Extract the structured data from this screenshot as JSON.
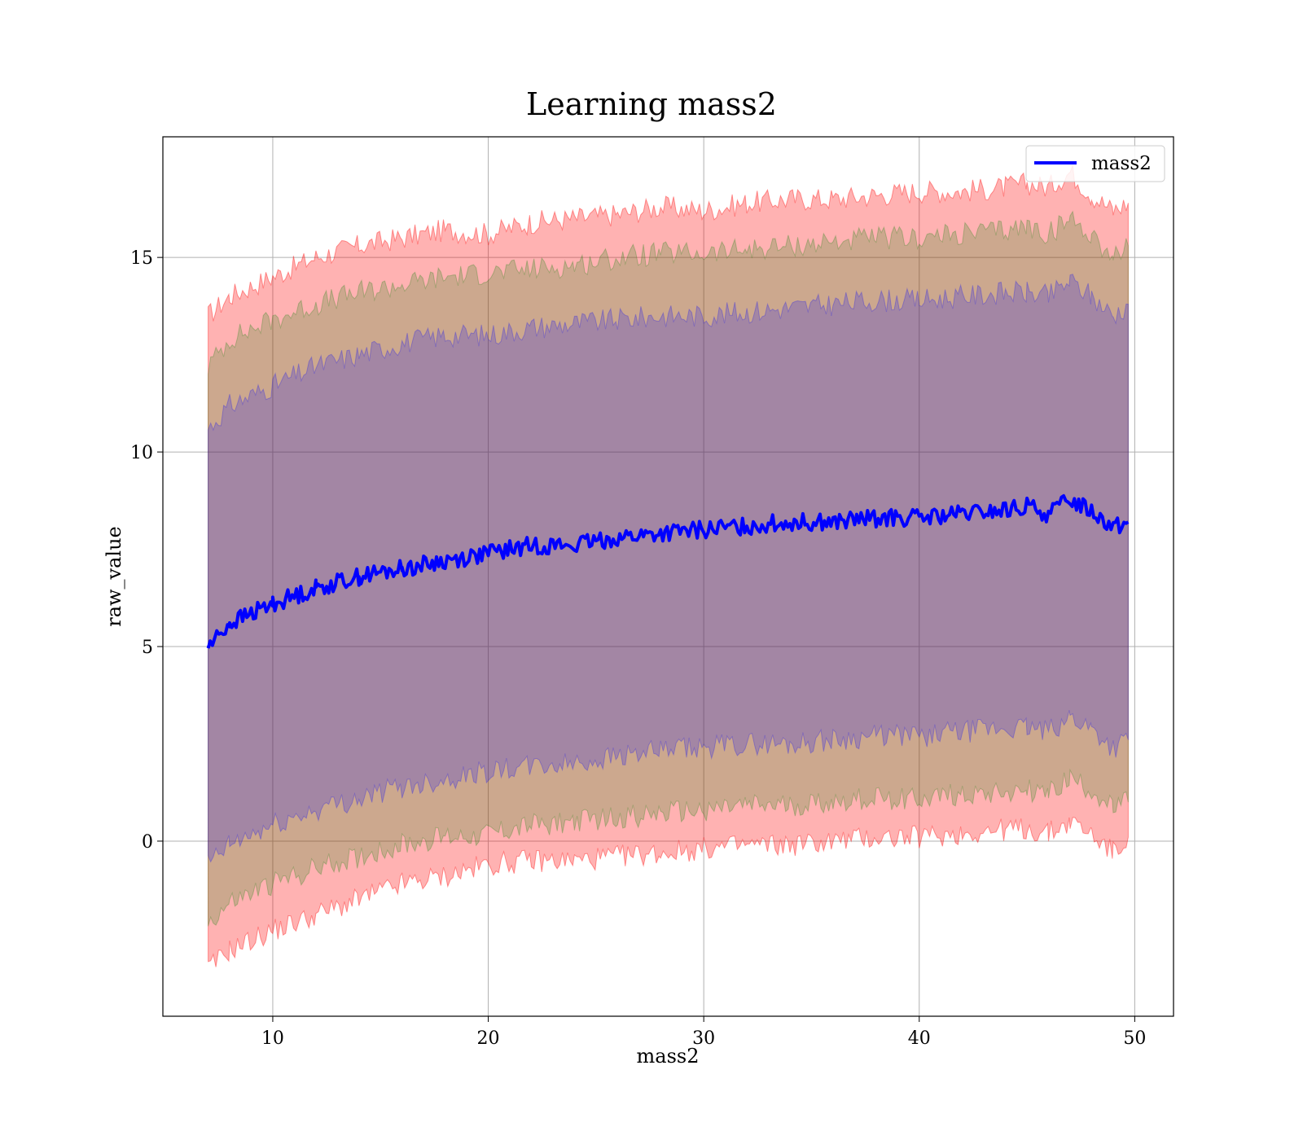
{
  "chart_data": {
    "type": "line",
    "title": "Learning mass2",
    "xlabel": "mass2",
    "ylabel": "raw_value",
    "xlim": [
      4.9,
      51.8
    ],
    "ylim": [
      -4.5,
      18.1
    ],
    "xticks": [
      10,
      20,
      30,
      40,
      50
    ],
    "yticks": [
      0,
      5,
      10,
      15
    ],
    "grid": true,
    "legend_position": "top-right",
    "series": [
      {
        "name": "mass2",
        "color": "#0000ff",
        "x": [
          7.0,
          8.0,
          10.0,
          12.0,
          14.0,
          16.0,
          18.0,
          20.0,
          22.0,
          24.0,
          26.0,
          28.0,
          30.0,
          32.0,
          34.0,
          36.0,
          38.0,
          40.0,
          42.0,
          44.0,
          45.0,
          46.0,
          47.0,
          48.0,
          49.0,
          49.7
        ],
        "mean": [
          5.0,
          5.6,
          6.1,
          6.5,
          6.8,
          7.0,
          7.2,
          7.4,
          7.6,
          7.6,
          7.8,
          7.9,
          8.0,
          8.1,
          8.2,
          8.2,
          8.3,
          8.3,
          8.4,
          8.5,
          8.6,
          8.4,
          8.8,
          8.5,
          8.1,
          8.2
        ]
      }
    ],
    "bands": [
      {
        "color": "#ff0000",
        "opacity": 0.3,
        "x": [
          7.0,
          8.0,
          10.0,
          12.0,
          14.0,
          16.0,
          18.0,
          20.0,
          22.0,
          24.0,
          26.0,
          28.0,
          30.0,
          32.0,
          34.0,
          36.0,
          38.0,
          40.0,
          42.0,
          44.0,
          45.0,
          46.0,
          47.0,
          48.0,
          49.0,
          49.7
        ],
        "upper": [
          13.5,
          14.0,
          14.5,
          15.0,
          15.3,
          15.5,
          15.7,
          15.6,
          15.9,
          16.0,
          16.1,
          16.3,
          16.2,
          16.4,
          16.5,
          16.5,
          16.6,
          16.7,
          16.7,
          16.8,
          16.9,
          16.8,
          17.2,
          16.6,
          16.2,
          16.4
        ],
        "lower": [
          -3.3,
          -2.8,
          -2.3,
          -1.9,
          -1.5,
          -1.1,
          -0.9,
          -0.6,
          -0.5,
          -0.5,
          -0.4,
          -0.3,
          -0.2,
          -0.1,
          -0.1,
          0.0,
          0.1,
          0.1,
          0.2,
          0.3,
          0.3,
          0.2,
          0.5,
          0.2,
          -0.3,
          0.1
        ]
      },
      {
        "color": "#008000",
        "opacity": 0.2,
        "x": [
          7.0,
          8.0,
          10.0,
          12.0,
          14.0,
          16.0,
          18.0,
          20.0,
          22.0,
          24.0,
          26.0,
          28.0,
          30.0,
          32.0,
          34.0,
          36.0,
          38.0,
          40.0,
          42.0,
          44.0,
          45.0,
          46.0,
          47.0,
          48.0,
          49.0,
          49.7
        ],
        "upper": [
          12.2,
          12.9,
          13.4,
          13.8,
          14.1,
          14.3,
          14.5,
          14.6,
          14.7,
          14.8,
          15.0,
          15.1,
          15.1,
          15.2,
          15.3,
          15.4,
          15.5,
          15.5,
          15.6,
          15.7,
          15.8,
          15.6,
          16.0,
          15.6,
          15.0,
          15.3
        ],
        "lower": [
          -2.1,
          -1.6,
          -1.1,
          -0.7,
          -0.4,
          -0.1,
          0.1,
          0.2,
          0.4,
          0.5,
          0.6,
          0.7,
          0.8,
          0.9,
          0.9,
          1.0,
          1.1,
          1.1,
          1.2,
          1.3,
          1.3,
          1.2,
          1.6,
          1.3,
          0.8,
          1.0
        ]
      },
      {
        "color": "#0000ff",
        "opacity": 0.2,
        "x": [
          7.0,
          8.0,
          10.0,
          12.0,
          14.0,
          16.0,
          18.0,
          20.0,
          22.0,
          24.0,
          26.0,
          28.0,
          30.0,
          32.0,
          34.0,
          36.0,
          38.0,
          40.0,
          42.0,
          44.0,
          45.0,
          46.0,
          47.0,
          48.0,
          49.0,
          49.7
        ],
        "upper": [
          10.6,
          11.2,
          11.7,
          12.2,
          12.5,
          12.8,
          13.0,
          13.0,
          13.2,
          13.3,
          13.4,
          13.5,
          13.5,
          13.6,
          13.7,
          13.8,
          13.9,
          13.9,
          14.0,
          14.1,
          14.1,
          14.0,
          14.4,
          14.0,
          13.5,
          13.8
        ],
        "lower": [
          -0.6,
          -0.1,
          0.4,
          0.8,
          1.1,
          1.4,
          1.6,
          1.8,
          1.9,
          2.0,
          2.2,
          2.3,
          2.4,
          2.5,
          2.5,
          2.6,
          2.7,
          2.7,
          2.8,
          2.9,
          2.9,
          2.8,
          3.2,
          2.9,
          2.4,
          2.6
        ]
      }
    ]
  }
}
